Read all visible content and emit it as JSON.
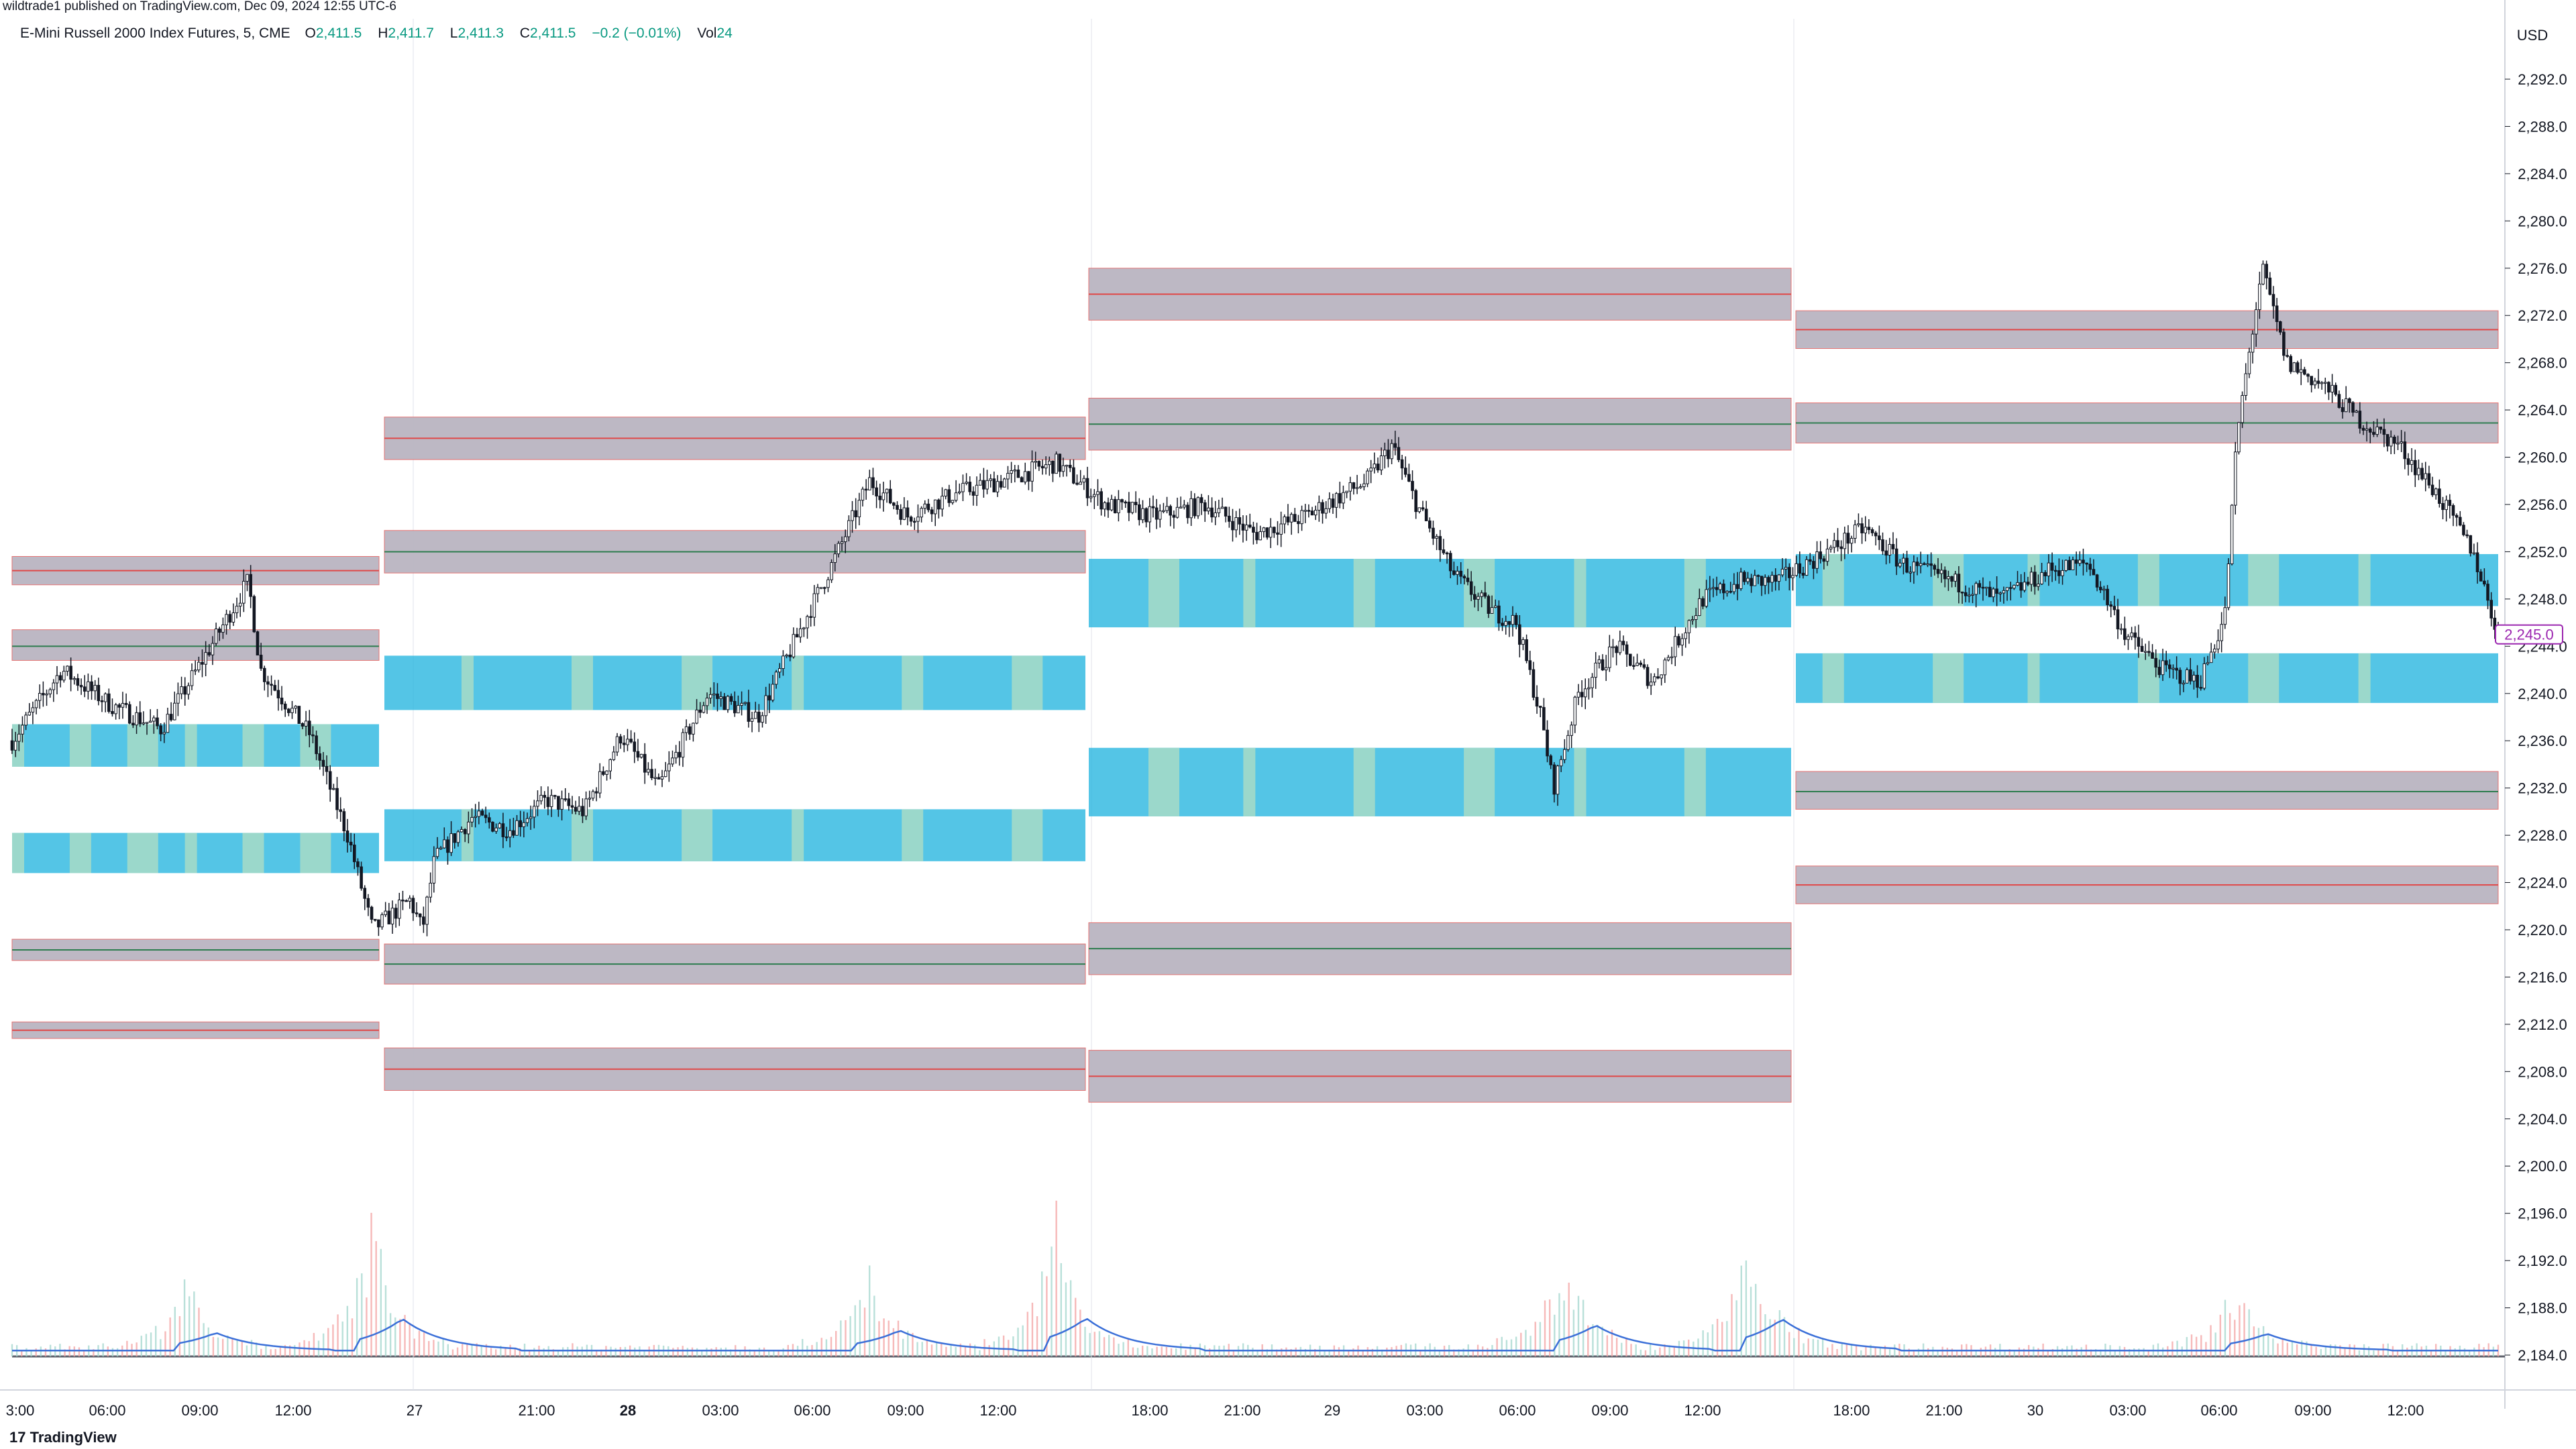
{
  "topline": "wildtrade1 published on TradingView.com, Dec 09, 2024 12:55 UTC-6",
  "legend": {
    "symbol": "E-Mini Russell 2000 Index Futures, 5, CME",
    "open_label": "O",
    "open": "2,411.5",
    "high_label": "H",
    "high": "2,411.7",
    "low_label": "L",
    "low": "2,411.3",
    "close_label": "C",
    "close": "2,411.5",
    "change": "−0.2 (−0.01%)",
    "vol_label": "Vol",
    "vol": "24"
  },
  "currency": "USD",
  "price_badge": "2,245.0",
  "footer": "TradingView",
  "colors": {
    "supply_zone": "#b9b4c1",
    "demand_zone": "#29b6e0",
    "demand_zone_touched": "#9fd9c9",
    "red_line": "#e04848",
    "green_line": "#2e7d4f",
    "vwap_line": "#3a6fd8",
    "candle": "#131722"
  },
  "chart_data": {
    "type": "candlestick",
    "y_axis_ticks": [
      "2,292.0",
      "2,288.0",
      "2,284.0",
      "2,280.0",
      "2,276.0",
      "2,272.0",
      "2,268.0",
      "2,264.0",
      "2,260.0",
      "2,256.0",
      "2,252.0",
      "2,248.0",
      "2,244.0",
      "2,240.0",
      "2,236.0",
      "2,232.0",
      "2,228.0",
      "2,224.0",
      "2,220.0",
      "2,216.0",
      "2,212.0",
      "2,208.0",
      "2,204.0",
      "2,200.0",
      "2,196.0",
      "2,192.0",
      "2,188.0",
      "2,184.0"
    ],
    "x_axis_ticks": [
      "3:00",
      "06:00",
      "09:00",
      "12:00",
      "27",
      "21:00",
      "28",
      "03:00",
      "06:00",
      "09:00",
      "12:00",
      "18:00",
      "21:00",
      "29",
      "03:00",
      "06:00",
      "09:00",
      "12:00",
      "18:00",
      "21:00",
      "30",
      "03:00",
      "06:00",
      "09:00",
      "12:00"
    ],
    "x_axis_bold": [
      "28"
    ],
    "sessions": [
      {
        "supply_zones": [
          [
            2249.2,
            2251.6
          ],
          [
            2242.8,
            2245.4
          ],
          [
            2217.4,
            2219.2
          ],
          [
            2210.8,
            2212.2
          ]
        ],
        "demand_zones": [
          [
            2233.8,
            2237.4
          ],
          [
            2224.8,
            2228.2
          ]
        ],
        "lines": [
          [
            2250.4,
            "red"
          ],
          [
            2244.0,
            "green"
          ],
          [
            2218.3,
            "green"
          ],
          [
            2211.5,
            "red"
          ]
        ]
      },
      {
        "supply_zones": [
          [
            2259.8,
            2263.4
          ],
          [
            2250.2,
            2253.8
          ],
          [
            2215.4,
            2218.8
          ],
          [
            2206.4,
            2210.0
          ]
        ],
        "demand_zones": [
          [
            2238.6,
            2243.2
          ],
          [
            2225.8,
            2230.2
          ]
        ],
        "lines": [
          [
            2261.6,
            "red"
          ],
          [
            2252.0,
            "green"
          ],
          [
            2217.1,
            "green"
          ],
          [
            2208.2,
            "red"
          ]
        ]
      },
      {
        "supply_zones": [
          [
            2271.6,
            2276.0
          ],
          [
            2260.6,
            2265.0
          ],
          [
            2216.2,
            2220.6
          ],
          [
            2205.4,
            2209.8
          ]
        ],
        "demand_zones": [
          [
            2245.6,
            2251.4
          ],
          [
            2229.6,
            2235.4
          ]
        ],
        "lines": [
          [
            2273.8,
            "red"
          ],
          [
            2262.8,
            "green"
          ],
          [
            2218.4,
            "green"
          ],
          [
            2207.6,
            "red"
          ]
        ]
      },
      {
        "supply_zones": [
          [
            2269.2,
            2272.4
          ],
          [
            2261.2,
            2264.6
          ],
          [
            2230.2,
            2233.4
          ],
          [
            2222.2,
            2225.4
          ]
        ],
        "demand_zones": [
          [
            2247.4,
            2251.8
          ],
          [
            2239.2,
            2243.4
          ]
        ],
        "lines": [
          [
            2270.8,
            "red"
          ],
          [
            2262.9,
            "green"
          ],
          [
            2231.7,
            "green"
          ],
          [
            2223.8,
            "red"
          ]
        ]
      }
    ],
    "price_path": [
      [
        0,
        2236.0
      ],
      [
        0.02,
        2242.0
      ],
      [
        0.04,
        2239.0
      ],
      [
        0.06,
        2237.0
      ],
      [
        0.08,
        2244.0
      ],
      [
        0.095,
        2249.5
      ],
      [
        0.1,
        2242.0
      ],
      [
        0.12,
        2236.5
      ],
      [
        0.135,
        2228.0
      ],
      [
        0.145,
        2220.0
      ],
      [
        0.16,
        2222.5
      ],
      [
        0.165,
        2220.0
      ],
      [
        0.17,
        2226.0
      ],
      [
        0.185,
        2229.5
      ],
      [
        0.2,
        2228.5
      ],
      [
        0.215,
        2231.0
      ],
      [
        0.23,
        2230.0
      ],
      [
        0.245,
        2236.5
      ],
      [
        0.26,
        2232.0
      ],
      [
        0.28,
        2240.0
      ],
      [
        0.3,
        2238.0
      ],
      [
        0.33,
        2251.0
      ],
      [
        0.345,
        2258.0
      ],
      [
        0.36,
        2255.0
      ],
      [
        0.38,
        2257.0
      ],
      [
        0.39,
        2257.5
      ],
      [
        0.42,
        2259.5
      ],
      [
        0.44,
        2256.0
      ],
      [
        0.46,
        2255.0
      ],
      [
        0.48,
        2256.0
      ],
      [
        0.5,
        2253.5
      ],
      [
        0.52,
        2255.0
      ],
      [
        0.545,
        2258.0
      ],
      [
        0.555,
        2261.0
      ],
      [
        0.565,
        2256.0
      ],
      [
        0.58,
        2250.0
      ],
      [
        0.595,
        2247.0
      ],
      [
        0.605,
        2246.0
      ],
      [
        0.615,
        2238.0
      ],
      [
        0.62,
        2232.0
      ],
      [
        0.63,
        2240.0
      ],
      [
        0.645,
        2244.0
      ],
      [
        0.66,
        2241.0
      ],
      [
        0.68,
        2248.0
      ],
      [
        0.695,
        2249.5
      ],
      [
        0.71,
        2249.5
      ],
      [
        0.73,
        2252.0
      ],
      [
        0.745,
        2254.0
      ],
      [
        0.76,
        2251.0
      ],
      [
        0.78,
        2249.5
      ],
      [
        0.8,
        2248.0
      ],
      [
        0.82,
        2250.5
      ],
      [
        0.835,
        2251.0
      ],
      [
        0.85,
        2245.0
      ],
      [
        0.865,
        2242.0
      ],
      [
        0.88,
        2241.0
      ],
      [
        0.89,
        2246.5
      ],
      [
        0.895,
        2262.0
      ],
      [
        0.905,
        2276.0
      ],
      [
        0.915,
        2268.0
      ],
      [
        0.93,
        2266.0
      ],
      [
        0.945,
        2263.0
      ],
      [
        0.96,
        2261.0
      ],
      [
        0.975,
        2257.0
      ],
      [
        0.99,
        2252.0
      ],
      [
        1.0,
        2245.0
      ]
    ],
    "volume_peaks": [
      [
        0.07,
        0.55
      ],
      [
        0.145,
        0.98
      ],
      [
        0.345,
        0.62
      ],
      [
        0.42,
        1.0
      ],
      [
        0.625,
        0.78
      ],
      [
        0.7,
        0.97
      ],
      [
        0.895,
        0.52
      ]
    ],
    "last_price": 2245.0,
    "y_range": [
      2184.0,
      2294.0
    ]
  }
}
